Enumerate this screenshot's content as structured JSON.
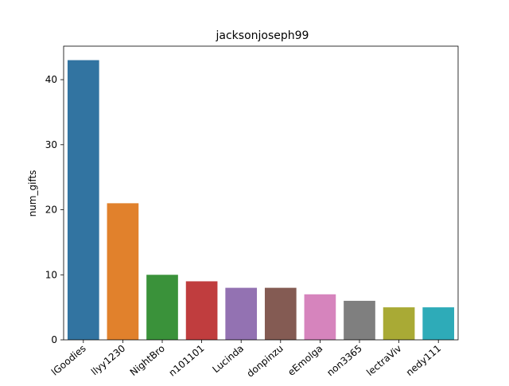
{
  "chart_data": {
    "type": "bar",
    "title": "jacksonjoseph99",
    "xlabel": "",
    "ylabel": "num_gifts",
    "categories": [
      "lGoodies",
      "llyy1230",
      "NightBro",
      "n101101",
      "Lucinda",
      "donpinzu",
      "eEmolga",
      "non3365",
      "lectraViv",
      "nedy111"
    ],
    "values": [
      43,
      21,
      10,
      9,
      8,
      8,
      7,
      6,
      5,
      5
    ],
    "colors": [
      "#3274a1",
      "#e1812c",
      "#3a923a",
      "#c03d3e",
      "#9372b2",
      "#845b53",
      "#d684bd",
      "#7f7f7f",
      "#a9aa35",
      "#2eabb8"
    ],
    "ylim": [
      0,
      45.15
    ],
    "yticks": [
      "0",
      "10",
      "20",
      "30",
      "40"
    ],
    "grid": false,
    "legend": "none"
  }
}
